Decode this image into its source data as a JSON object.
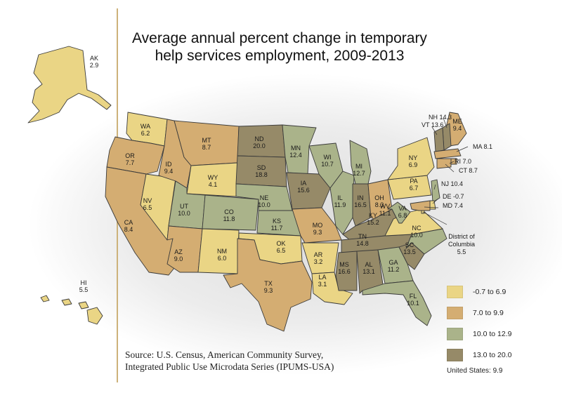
{
  "title_line1": "Average annual percent change in temporary",
  "title_line2": "help services employment, 2009-2013",
  "source_line1": "Source: U.S. Census, American Community Survey,",
  "source_line2": "Integrated Public Use Microdata Series (IPUMS-USA)",
  "legend": [
    {
      "label": "-0.7 to 6.9",
      "color": "#ead585"
    },
    {
      "label": "7.0 to 9.9",
      "color": "#d4ad72"
    },
    {
      "label": "10.0 to 12.9",
      "color": "#aab38a"
    },
    {
      "label": "13.0 to 20.0",
      "color": "#968a68"
    }
  ],
  "us_total": "United States: 9.9",
  "states": [
    {
      "abbr": "AK",
      "value": "2.9",
      "cls": 0
    },
    {
      "abbr": "HI",
      "value": "5.5",
      "cls": 0
    },
    {
      "abbr": "WA",
      "value": "6.2",
      "cls": 0
    },
    {
      "abbr": "OR",
      "value": "7.7",
      "cls": 1
    },
    {
      "abbr": "CA",
      "value": "8.4",
      "cls": 1
    },
    {
      "abbr": "NV",
      "value": "6.5",
      "cls": 0
    },
    {
      "abbr": "ID",
      "value": "9.4",
      "cls": 1
    },
    {
      "abbr": "MT",
      "value": "8.7",
      "cls": 1
    },
    {
      "abbr": "WY",
      "value": "4.1",
      "cls": 0
    },
    {
      "abbr": "UT",
      "value": "10.0",
      "cls": 2
    },
    {
      "abbr": "CO",
      "value": "11.8",
      "cls": 2
    },
    {
      "abbr": "AZ",
      "value": "9.0",
      "cls": 1
    },
    {
      "abbr": "NM",
      "value": "6.0",
      "cls": 0
    },
    {
      "abbr": "ND",
      "value": "20.0",
      "cls": 3
    },
    {
      "abbr": "SD",
      "value": "18.8",
      "cls": 3
    },
    {
      "abbr": "NE",
      "value": "10.0",
      "cls": 2
    },
    {
      "abbr": "KS",
      "value": "11.7",
      "cls": 2
    },
    {
      "abbr": "OK",
      "value": "6.5",
      "cls": 0
    },
    {
      "abbr": "TX",
      "value": "9.3",
      "cls": 1
    },
    {
      "abbr": "MN",
      "value": "12.4",
      "cls": 2
    },
    {
      "abbr": "IA",
      "value": "15.6",
      "cls": 3
    },
    {
      "abbr": "MO",
      "value": "9.3",
      "cls": 1
    },
    {
      "abbr": "AR",
      "value": "3.2",
      "cls": 0
    },
    {
      "abbr": "LA",
      "value": "3.1",
      "cls": 0
    },
    {
      "abbr": "WI",
      "value": "10.7",
      "cls": 2
    },
    {
      "abbr": "IL",
      "value": "11.9",
      "cls": 2
    },
    {
      "abbr": "MI",
      "value": "12.7",
      "cls": 2
    },
    {
      "abbr": "IN",
      "value": "16.5",
      "cls": 3
    },
    {
      "abbr": "OH",
      "value": "8.3",
      "cls": 1
    },
    {
      "abbr": "KY",
      "value": "15.2",
      "cls": 3
    },
    {
      "abbr": "TN",
      "value": "14.8",
      "cls": 3
    },
    {
      "abbr": "MS",
      "value": "16.6",
      "cls": 3
    },
    {
      "abbr": "AL",
      "value": "13.1",
      "cls": 3
    },
    {
      "abbr": "GA",
      "value": "11.2",
      "cls": 2
    },
    {
      "abbr": "FL",
      "value": "10.1",
      "cls": 2
    },
    {
      "abbr": "SC",
      "value": "13.5",
      "cls": 3
    },
    {
      "abbr": "NC",
      "value": "10.0",
      "cls": 2
    },
    {
      "abbr": "VA",
      "value": "6.8",
      "cls": 0
    },
    {
      "abbr": "WV",
      "value": "11.1",
      "cls": 2
    },
    {
      "abbr": "PA",
      "value": "6.7",
      "cls": 0
    },
    {
      "abbr": "NY",
      "value": "6.9",
      "cls": 0
    },
    {
      "abbr": "ME",
      "value": "9.4",
      "cls": 1
    },
    {
      "abbr": "NH",
      "value": "14.3",
      "cls": 3
    },
    {
      "abbr": "VT",
      "value": "13.6",
      "cls": 3
    },
    {
      "abbr": "MA",
      "value": "8.1",
      "cls": 1
    },
    {
      "abbr": "RI",
      "value": "7.0",
      "cls": 1
    },
    {
      "abbr": "CT",
      "value": "8.7",
      "cls": 1
    },
    {
      "abbr": "NJ",
      "value": "10.4",
      "cls": 2
    },
    {
      "abbr": "DE",
      "value": "-0.7",
      "cls": 0
    },
    {
      "abbr": "MD",
      "value": "7.4",
      "cls": 1
    },
    {
      "abbr": "DC",
      "value": "5.5",
      "cls": 0
    }
  ],
  "dc_name_line1": "District of",
  "dc_name_line2": "Columbia"
}
